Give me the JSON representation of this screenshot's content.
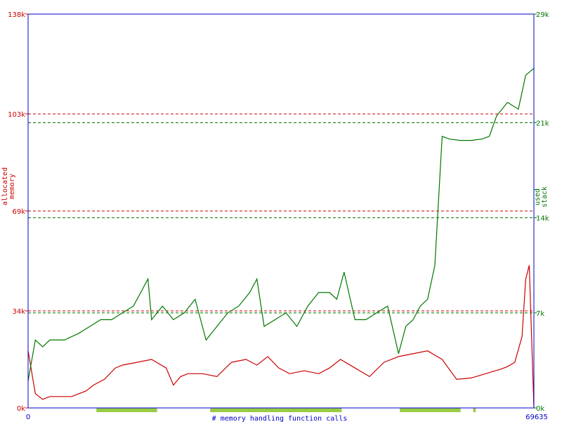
{
  "chart_data": {
    "type": "line",
    "xlabel": "# memory handling function calls",
    "x_range": [
      0,
      69635
    ],
    "x_ticks": [
      "0",
      "69635"
    ],
    "grid": false,
    "colors": {
      "memory": "#cc0000",
      "stack": "#007700",
      "frame": "#0000cc",
      "segments": "#99cc44"
    },
    "left_axis": {
      "label": [
        "allocated",
        "memory"
      ],
      "ylim": [
        0,
        138000
      ],
      "ticks": [
        {
          "value": 0,
          "label": "0k"
        },
        {
          "value": 34000,
          "label": "34k"
        },
        {
          "value": 69000,
          "label": "69k"
        },
        {
          "value": 103000,
          "label": "103k"
        },
        {
          "value": 138000,
          "label": "138k"
        }
      ],
      "ref_lines": [
        34000,
        69000,
        103000
      ]
    },
    "right_axis": {
      "label": [
        "used",
        "stack"
      ],
      "ylim": [
        0,
        29000
      ],
      "ticks": [
        {
          "value": 0,
          "label": "0k"
        },
        {
          "value": 7000,
          "label": "7k"
        },
        {
          "value": 14000,
          "label": "14k"
        },
        {
          "value": 21000,
          "label": "21k"
        },
        {
          "value": 29000,
          "label": "29k"
        }
      ],
      "ref_lines": [
        7000,
        14000,
        21000
      ]
    },
    "series": [
      {
        "key": "memory",
        "axis": "left",
        "x": [
          0,
          1000,
          2000,
          3000,
          6000,
          8000,
          9000,
          10500,
          12000,
          13000,
          15000,
          17000,
          19000,
          20000,
          21000,
          22000,
          24000,
          26000,
          28000,
          30000,
          31500,
          33000,
          34500,
          36000,
          38000,
          40000,
          41500,
          43000,
          45000,
          47000,
          49000,
          51000,
          53000,
          55000,
          57000,
          59000,
          61000,
          63000,
          64000,
          65000,
          66000,
          67000,
          68000,
          68500,
          69000,
          69635
        ],
        "values": [
          20000,
          5000,
          3000,
          4000,
          4000,
          6000,
          8000,
          10000,
          14000,
          15000,
          16000,
          17000,
          14000,
          8000,
          11000,
          12000,
          12000,
          11000,
          16000,
          17000,
          15000,
          18000,
          14000,
          12000,
          13000,
          12000,
          14000,
          17000,
          14000,
          11000,
          16000,
          18000,
          19000,
          20000,
          17000,
          10000,
          10500,
          12000,
          12800,
          13500,
          14500,
          16000,
          25000,
          45000,
          50000,
          0
        ]
      },
      {
        "key": "stack",
        "axis": "right",
        "x": [
          0,
          1000,
          2000,
          3000,
          5000,
          7000,
          8500,
          10000,
          11500,
          13000,
          14500,
          15500,
          16500,
          17000,
          18500,
          20000,
          21500,
          23000,
          24500,
          26000,
          27500,
          29000,
          30500,
          31500,
          32500,
          34000,
          35500,
          37000,
          38500,
          40000,
          41500,
          42500,
          43500,
          45000,
          46500,
          48000,
          49500,
          51000,
          52000,
          53000,
          54000,
          55000,
          56000,
          57000,
          58000,
          59500,
          61000,
          62500,
          63500,
          64500,
          66000,
          67500,
          68500,
          69635
        ],
        "values": [
          2000,
          5000,
          4500,
          5000,
          5000,
          5500,
          6000,
          6500,
          6500,
          7000,
          7500,
          8500,
          9500,
          6500,
          7500,
          6500,
          7000,
          8000,
          5000,
          6000,
          7000,
          7500,
          8500,
          9500,
          6000,
          6500,
          7000,
          6000,
          7500,
          8500,
          8500,
          8000,
          10000,
          6500,
          6500,
          7000,
          7500,
          4000,
          6000,
          6500,
          7500,
          8000,
          10500,
          20000,
          19800,
          19700,
          19700,
          19800,
          20000,
          21500,
          22500,
          22000,
          24500,
          25000
        ]
      }
    ],
    "segments": [
      [
        13500,
        25500
      ],
      [
        36000,
        62000
      ],
      [
        73500,
        85500
      ],
      [
        88000,
        88500
      ]
    ]
  }
}
